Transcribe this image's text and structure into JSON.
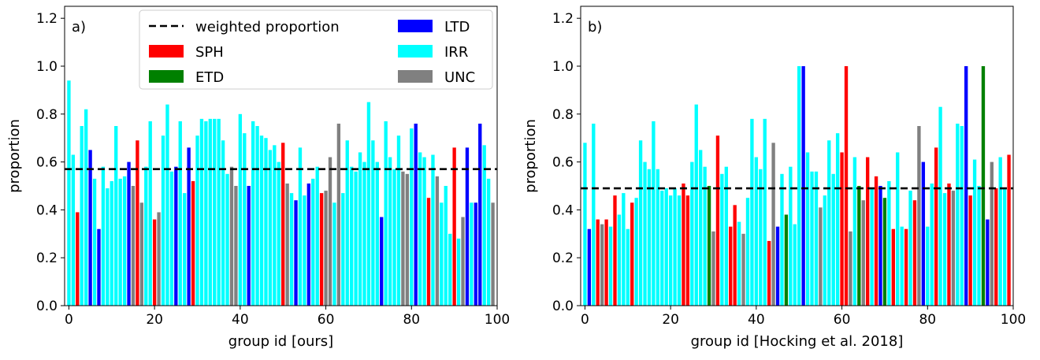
{
  "chart_data": [
    {
      "type": "bar",
      "panel_label": "a)",
      "xlabel": "group id [ours]",
      "ylabel": "proportion",
      "xlim": [
        -1,
        100
      ],
      "ylim": [
        0,
        1.25
      ],
      "xticks": [
        0,
        20,
        40,
        60,
        80,
        100
      ],
      "yticks": [
        0.0,
        0.2,
        0.4,
        0.6,
        0.8,
        1.0,
        1.2
      ],
      "reference_line": {
        "label": "weighted proportion",
        "value": 0.57,
        "style": "dashed",
        "color": "#000000"
      },
      "legend": {
        "placement": "top-center",
        "entries": [
          {
            "label": "weighted proportion",
            "kind": "line"
          },
          {
            "label": "SPH",
            "kind": "patch",
            "class": "SPH"
          },
          {
            "label": "ETD",
            "kind": "patch",
            "class": "ETD"
          },
          {
            "label": "LTD",
            "kind": "patch",
            "class": "LTD"
          },
          {
            "label": "IRR",
            "kind": "patch",
            "class": "IRR"
          },
          {
            "label": "UNC",
            "kind": "patch",
            "class": "UNC"
          }
        ]
      },
      "colors": {
        "SPH": "#ff0000",
        "ETD": "#008000",
        "LTD": "#0000ff",
        "IRR": "#00ffff",
        "UNC": "#808080"
      },
      "classes": [
        "I",
        "I",
        "S",
        "I",
        "I",
        "L",
        "I",
        "L",
        "I",
        "I",
        "I",
        "I",
        "I",
        "I",
        "L",
        "U",
        "S",
        "U",
        "I",
        "I",
        "S",
        "U",
        "I",
        "I",
        "I",
        "L",
        "I",
        "I",
        "L",
        "S",
        "I",
        "I",
        "I",
        "I",
        "I",
        "I",
        "I",
        "I",
        "U",
        "U",
        "I",
        "I",
        "L",
        "I",
        "I",
        "I",
        "I",
        "I",
        "I",
        "I",
        "S",
        "U",
        "I",
        "L",
        "I",
        "I",
        "L",
        "I",
        "I",
        "S",
        "U",
        "U",
        "I",
        "U",
        "I",
        "I",
        "I",
        "I",
        "I",
        "I",
        "I",
        "I",
        "I",
        "L",
        "I",
        "I",
        "I",
        "I",
        "U",
        "U",
        "I",
        "L",
        "I",
        "I",
        "S",
        "I",
        "U",
        "I",
        "I",
        "I",
        "S",
        "I",
        "U",
        "L",
        "I",
        "L",
        "L",
        "I",
        "I",
        "U"
      ],
      "values": [
        0.94,
        0.63,
        0.39,
        0.75,
        0.82,
        0.65,
        0.53,
        0.32,
        0.58,
        0.49,
        0.52,
        0.75,
        0.53,
        0.54,
        0.6,
        0.5,
        0.69,
        0.43,
        0.58,
        0.77,
        0.36,
        0.39,
        0.71,
        0.84,
        0.56,
        0.58,
        0.77,
        0.47,
        0.66,
        0.52,
        0.71,
        0.78,
        0.77,
        0.78,
        0.78,
        0.78,
        0.69,
        0.55,
        0.58,
        0.5,
        0.8,
        0.72,
        0.5,
        0.77,
        0.75,
        0.71,
        0.7,
        0.65,
        0.67,
        0.6,
        0.68,
        0.51,
        0.47,
        0.44,
        0.66,
        0.46,
        0.51,
        0.53,
        0.58,
        0.47,
        0.48,
        0.62,
        0.43,
        0.76,
        0.47,
        0.69,
        0.58,
        0.56,
        0.64,
        0.6,
        0.85,
        0.69,
        0.6,
        0.37,
        0.77,
        0.62,
        0.57,
        0.71,
        0.56,
        0.55,
        0.74,
        0.76,
        0.64,
        0.62,
        0.45,
        0.63,
        0.54,
        0.43,
        0.5,
        0.3,
        0.66,
        0.28,
        0.37,
        0.66,
        0.43,
        0.43,
        0.76,
        0.67,
        0.53,
        0.43
      ]
    },
    {
      "type": "bar",
      "panel_label": "b)",
      "xlabel": "group id [Hocking et al. 2018]",
      "ylabel": "proportion",
      "xlim": [
        -1,
        100
      ],
      "ylim": [
        0,
        1.25
      ],
      "xticks": [
        0,
        20,
        40,
        60,
        80,
        100
      ],
      "yticks": [
        0.0,
        0.2,
        0.4,
        0.6,
        0.8,
        1.0,
        1.2
      ],
      "reference_line": {
        "label": "weighted proportion",
        "value": 0.49,
        "style": "dashed",
        "color": "#000000"
      },
      "colors": {
        "SPH": "#ff0000",
        "ETD": "#008000",
        "LTD": "#0000ff",
        "IRR": "#00ffff",
        "UNC": "#808080"
      },
      "classes": [
        "I",
        "L",
        "I",
        "S",
        "U",
        "S",
        "I",
        "S",
        "I",
        "I",
        "I",
        "S",
        "I",
        "I",
        "I",
        "I",
        "I",
        "I",
        "I",
        "I",
        "I",
        "I",
        "I",
        "S",
        "S",
        "I",
        "I",
        "I",
        "I",
        "E",
        "U",
        "S",
        "I",
        "I",
        "S",
        "S",
        "I",
        "U",
        "I",
        "I",
        "I",
        "I",
        "I",
        "S",
        "U",
        "L",
        "I",
        "E",
        "I",
        "I",
        "I",
        "L",
        "I",
        "I",
        "I",
        "U",
        "I",
        "I",
        "I",
        "I",
        "S",
        "S",
        "U",
        "I",
        "E",
        "U",
        "S",
        "I",
        "S",
        "L",
        "E",
        "I",
        "S",
        "I",
        "I",
        "S",
        "I",
        "S",
        "U",
        "L",
        "I",
        "I",
        "S",
        "I",
        "I",
        "S",
        "U",
        "I",
        "I",
        "L",
        "S",
        "I",
        "I",
        "E",
        "L",
        "U",
        "S",
        "I",
        "I",
        "S"
      ],
      "values": [
        0.68,
        0.32,
        0.76,
        0.36,
        0.34,
        0.36,
        0.33,
        0.46,
        0.38,
        0.47,
        0.32,
        0.43,
        0.45,
        0.69,
        0.6,
        0.57,
        0.77,
        0.57,
        0.48,
        0.49,
        0.46,
        0.49,
        0.46,
        0.51,
        0.46,
        0.6,
        0.84,
        0.65,
        0.58,
        0.5,
        0.31,
        0.71,
        0.55,
        0.58,
        0.33,
        0.42,
        0.35,
        0.3,
        0.45,
        0.78,
        0.62,
        0.57,
        0.78,
        0.27,
        0.68,
        0.33,
        0.55,
        0.38,
        0.58,
        0.34,
        1.0,
        1.0,
        0.64,
        0.56,
        0.56,
        0.41,
        0.46,
        0.69,
        0.55,
        0.72,
        0.64,
        1.0,
        0.31,
        0.62,
        0.5,
        0.44,
        0.62,
        0.49,
        0.54,
        0.5,
        0.45,
        0.52,
        0.32,
        0.64,
        0.33,
        0.32,
        0.48,
        0.44,
        0.75,
        0.6,
        0.33,
        0.51,
        0.66,
        0.83,
        0.47,
        0.51,
        0.48,
        0.76,
        0.75,
        1.0,
        0.46,
        0.61,
        0.5,
        1.0,
        0.36,
        0.6,
        0.49,
        0.62,
        0.49,
        0.63
      ]
    }
  ]
}
